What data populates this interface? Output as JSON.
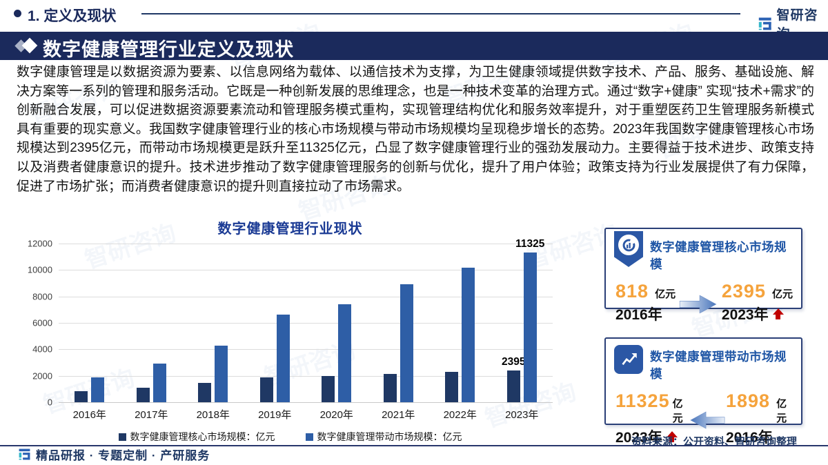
{
  "header": {
    "section_label": "1. 定义及现状",
    "logo_text": "智研咨询",
    "banner_title": "数字健康管理行业定义及现状"
  },
  "paragraph": "数字健康管理是以数据资源为要素、以信息网络为载体、以通信技术为支撑，为卫生健康领域提供数字技术、产品、服务、基础设施、解决方案等一系列的管理和服务活动。它既是一种创新发展的思维理念，也是一种技术变革的治理方式。通过“数字+健康” 实现“技术+需求”的创新融合发展，可以促进数据资源要素流动和管理服务模式重构，实现管理结构优化和服务效率提升，对于重塑医药卫生管理服务新模式具有重要的现实意义。我国数字健康管理行业的核心市场规模与带动市场规模均呈现稳步增长的态势。2023年我国数字健康管理核心市场规模达到2395亿元，而带动市场规模更是跃升至11325亿元，凸显了数字健康管理行业的强劲发展动力。主要得益于技术进步、政策支持以及消费者健康意识的提升。技术进步推动了数字健康管理服务的创新与优化，提升了用户体验；政策支持为行业发展提供了有力保障，促进了市场扩张；而消费者健康意识的提升则直接拉动了市场需求。",
  "chart_data": {
    "type": "bar",
    "title": "数字健康管理行业现状",
    "categories": [
      "2016年",
      "2017年",
      "2018年",
      "2019年",
      "2020年",
      "2021年",
      "2022年",
      "2023年"
    ],
    "series": [
      {
        "name": "数字健康管理核心市场规模：亿元",
        "color": "#1F3864",
        "values": [
          818,
          1100,
          1450,
          1880,
          2000,
          2150,
          2320,
          2395
        ]
      },
      {
        "name": "数字健康管理带动市场规模：亿元",
        "color": "#2E5EA6",
        "values": [
          1898,
          2900,
          4300,
          6600,
          7400,
          8900,
          10150,
          11325
        ]
      }
    ],
    "ylim": [
      0,
      12000
    ],
    "yticks": [
      "12000",
      "10000",
      "8000",
      "6000",
      "4000",
      "2000",
      "0"
    ],
    "data_labels": [
      {
        "series": 0,
        "index": 7,
        "text": "2395"
      },
      {
        "series": 1,
        "index": 7,
        "text": "11325"
      }
    ],
    "grid": true,
    "legend_position": "bottom"
  },
  "cards": [
    {
      "title": "数字健康管理核心市场规模",
      "icon": "donut-chart-icon",
      "left": {
        "value": "818",
        "unit": "亿元",
        "year": "2016年"
      },
      "arrow_direction": "right",
      "right": {
        "value": "2395",
        "unit": "亿元",
        "year": "2023年"
      }
    },
    {
      "title": "数字健康管理带动市场规模",
      "icon": "trend-up-icon",
      "left": {
        "value": "11325",
        "unit": "亿元",
        "year": "2023年"
      },
      "arrow_direction": "left",
      "right": {
        "value": "1898",
        "unit": "亿元",
        "year": "2016年"
      }
    }
  ],
  "source_note": "资料来源：公开资料、智研咨询整理",
  "footer": {
    "text": "精品研报 · 专题定制 · 产研服务"
  },
  "watermark": "智研咨询",
  "colors": {
    "banner_navy": "#1B2A5C",
    "core_series": "#1F3864",
    "driven_series": "#2E5EA6",
    "value_orange": "#F5A33C",
    "alert_red": "#C00000",
    "brand_blue": "#2B62B4",
    "brand_teal": "#35B6C9"
  }
}
